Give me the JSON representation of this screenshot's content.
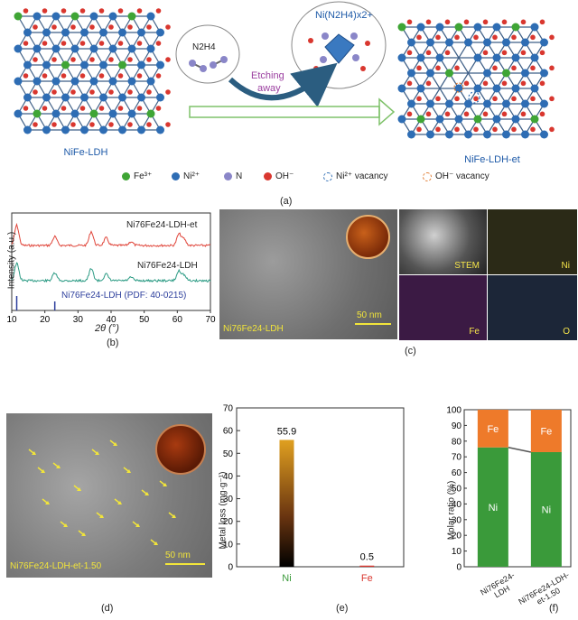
{
  "panel_a": {
    "left_label": "NiFe-LDH",
    "right_label": "NiFe-LDH-et",
    "reagent": "N2H4",
    "arrow_text_1": "Etching",
    "arrow_text_2": "away",
    "complex": "Ni(N2H4)x2+",
    "caption": "(a)",
    "legend": [
      {
        "label": "Fe³⁺",
        "color": "#3fa535"
      },
      {
        "label": "Ni²⁺",
        "color": "#2e6db4"
      },
      {
        "label": "N",
        "color": "#8a86c8"
      },
      {
        "label": "OH⁻",
        "color": "#d9372f"
      },
      {
        "label": "Ni²⁺ vacancy",
        "color": "#2e6db4"
      },
      {
        "label": "OH⁻ vacancy",
        "color": "#e07a2e"
      }
    ]
  },
  "panel_b": {
    "caption": "(b)",
    "ylabel": "Intensity (a.u.)",
    "xlabel": "2θ (°)",
    "xticks": [
      "10",
      "20",
      "30",
      "40",
      "50",
      "60",
      "70"
    ],
    "curve_top": "Ni76Fe24-LDH-et",
    "curve_mid": "Ni76Fe24-LDH",
    "reference": "Ni76Fe24-LDH (PDF: 40-0215)"
  },
  "panel_c": {
    "caption": "(c)",
    "sample": "Ni76Fe24-LDH",
    "scale": "50 nm",
    "maps": [
      "STEM",
      "Ni",
      "Fe",
      "O"
    ]
  },
  "panel_d": {
    "caption": "(d)",
    "sample": "Ni76Fe24-LDH-et-1.50",
    "scale": "50 nm"
  },
  "chart_data": [
    {
      "type": "bar",
      "caption": "(e)",
      "categories": [
        "Ni",
        "Fe"
      ],
      "values": [
        55.9,
        0.5
      ],
      "value_labels": [
        "55.9",
        "0.5"
      ],
      "ylabel": "Metal loss (mg·g⁻¹)",
      "ylim": [
        0,
        70
      ],
      "yticks": [
        "0",
        "10",
        "20",
        "30",
        "40",
        "50",
        "60",
        "70"
      ],
      "colors": {
        "Ni": "#e0a020",
        "Fe": "#d9372f"
      }
    },
    {
      "type": "bar",
      "caption": "(f)",
      "stacked": true,
      "categories": [
        "Ni76Fe24-LDH",
        "Ni76Fe24-LDH-et-1.50"
      ],
      "series": [
        {
          "name": "Ni",
          "values": [
            76,
            73
          ],
          "color": "#3a9a3a"
        },
        {
          "name": "Fe",
          "values": [
            24,
            27
          ],
          "color": "#ee7a2a"
        }
      ],
      "ylabel": "Molar ratio (%)",
      "ylim": [
        0,
        100
      ],
      "yticks": [
        "0",
        "10",
        "20",
        "30",
        "40",
        "50",
        "60",
        "70",
        "80",
        "90",
        "100"
      ]
    }
  ]
}
